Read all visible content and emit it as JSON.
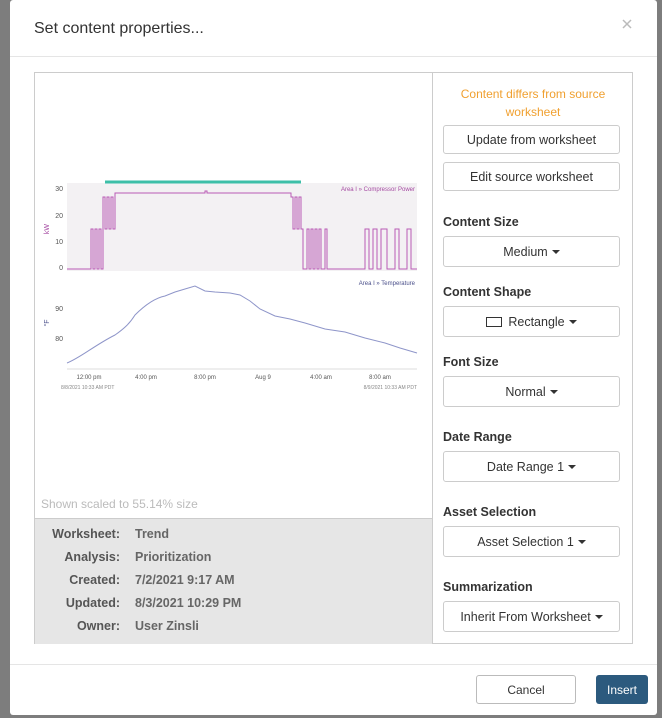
{
  "dialog": {
    "title": "Set content properties..."
  },
  "preview": {
    "power_label": "Area I » Compressor Power",
    "power_unit": "kW",
    "power_ticks": [
      30,
      20,
      10,
      0
    ],
    "temp_label": "Area I » Temperature",
    "temp_unit": "°F",
    "temp_ticks": [
      90,
      80
    ],
    "x_ticks": [
      "12:00 pm",
      "4:00 pm",
      "8:00 pm",
      "Aug 9",
      "4:00 am",
      "8:00 am"
    ],
    "start": "8/8/2021 10:33 AM PDT",
    "end": "8/9/2021 10:33 AM PDT",
    "scale_note": "Shown scaled to 55.14% size"
  },
  "info": [
    {
      "label": "Worksheet:",
      "value": "Trend"
    },
    {
      "label": "Analysis:",
      "value": "Prioritization"
    },
    {
      "label": "Created:",
      "value": "7/2/2021 9:17 AM"
    },
    {
      "label": "Updated:",
      "value": "8/3/2021 10:29 PM"
    },
    {
      "label": "Owner:",
      "value": "User Zinsli"
    }
  ],
  "panel": {
    "warning": "Content differs from source worksheet",
    "buttons": [
      "Update from worksheet",
      "Edit source worksheet"
    ],
    "sections": [
      {
        "heading": "Content Size",
        "value": "Medium"
      },
      {
        "heading": "Content Shape",
        "value": "Rectangle"
      },
      {
        "heading": "Font Size",
        "value": "Normal"
      },
      {
        "heading": "Date Range",
        "value": "Date Range 1"
      },
      {
        "heading": "Asset Selection",
        "value": "Asset Selection 1"
      },
      {
        "heading": "Summarization",
        "value": "Inherit From Worksheet"
      }
    ]
  },
  "footer": {
    "cancel": "Cancel",
    "insert": "Insert"
  }
}
